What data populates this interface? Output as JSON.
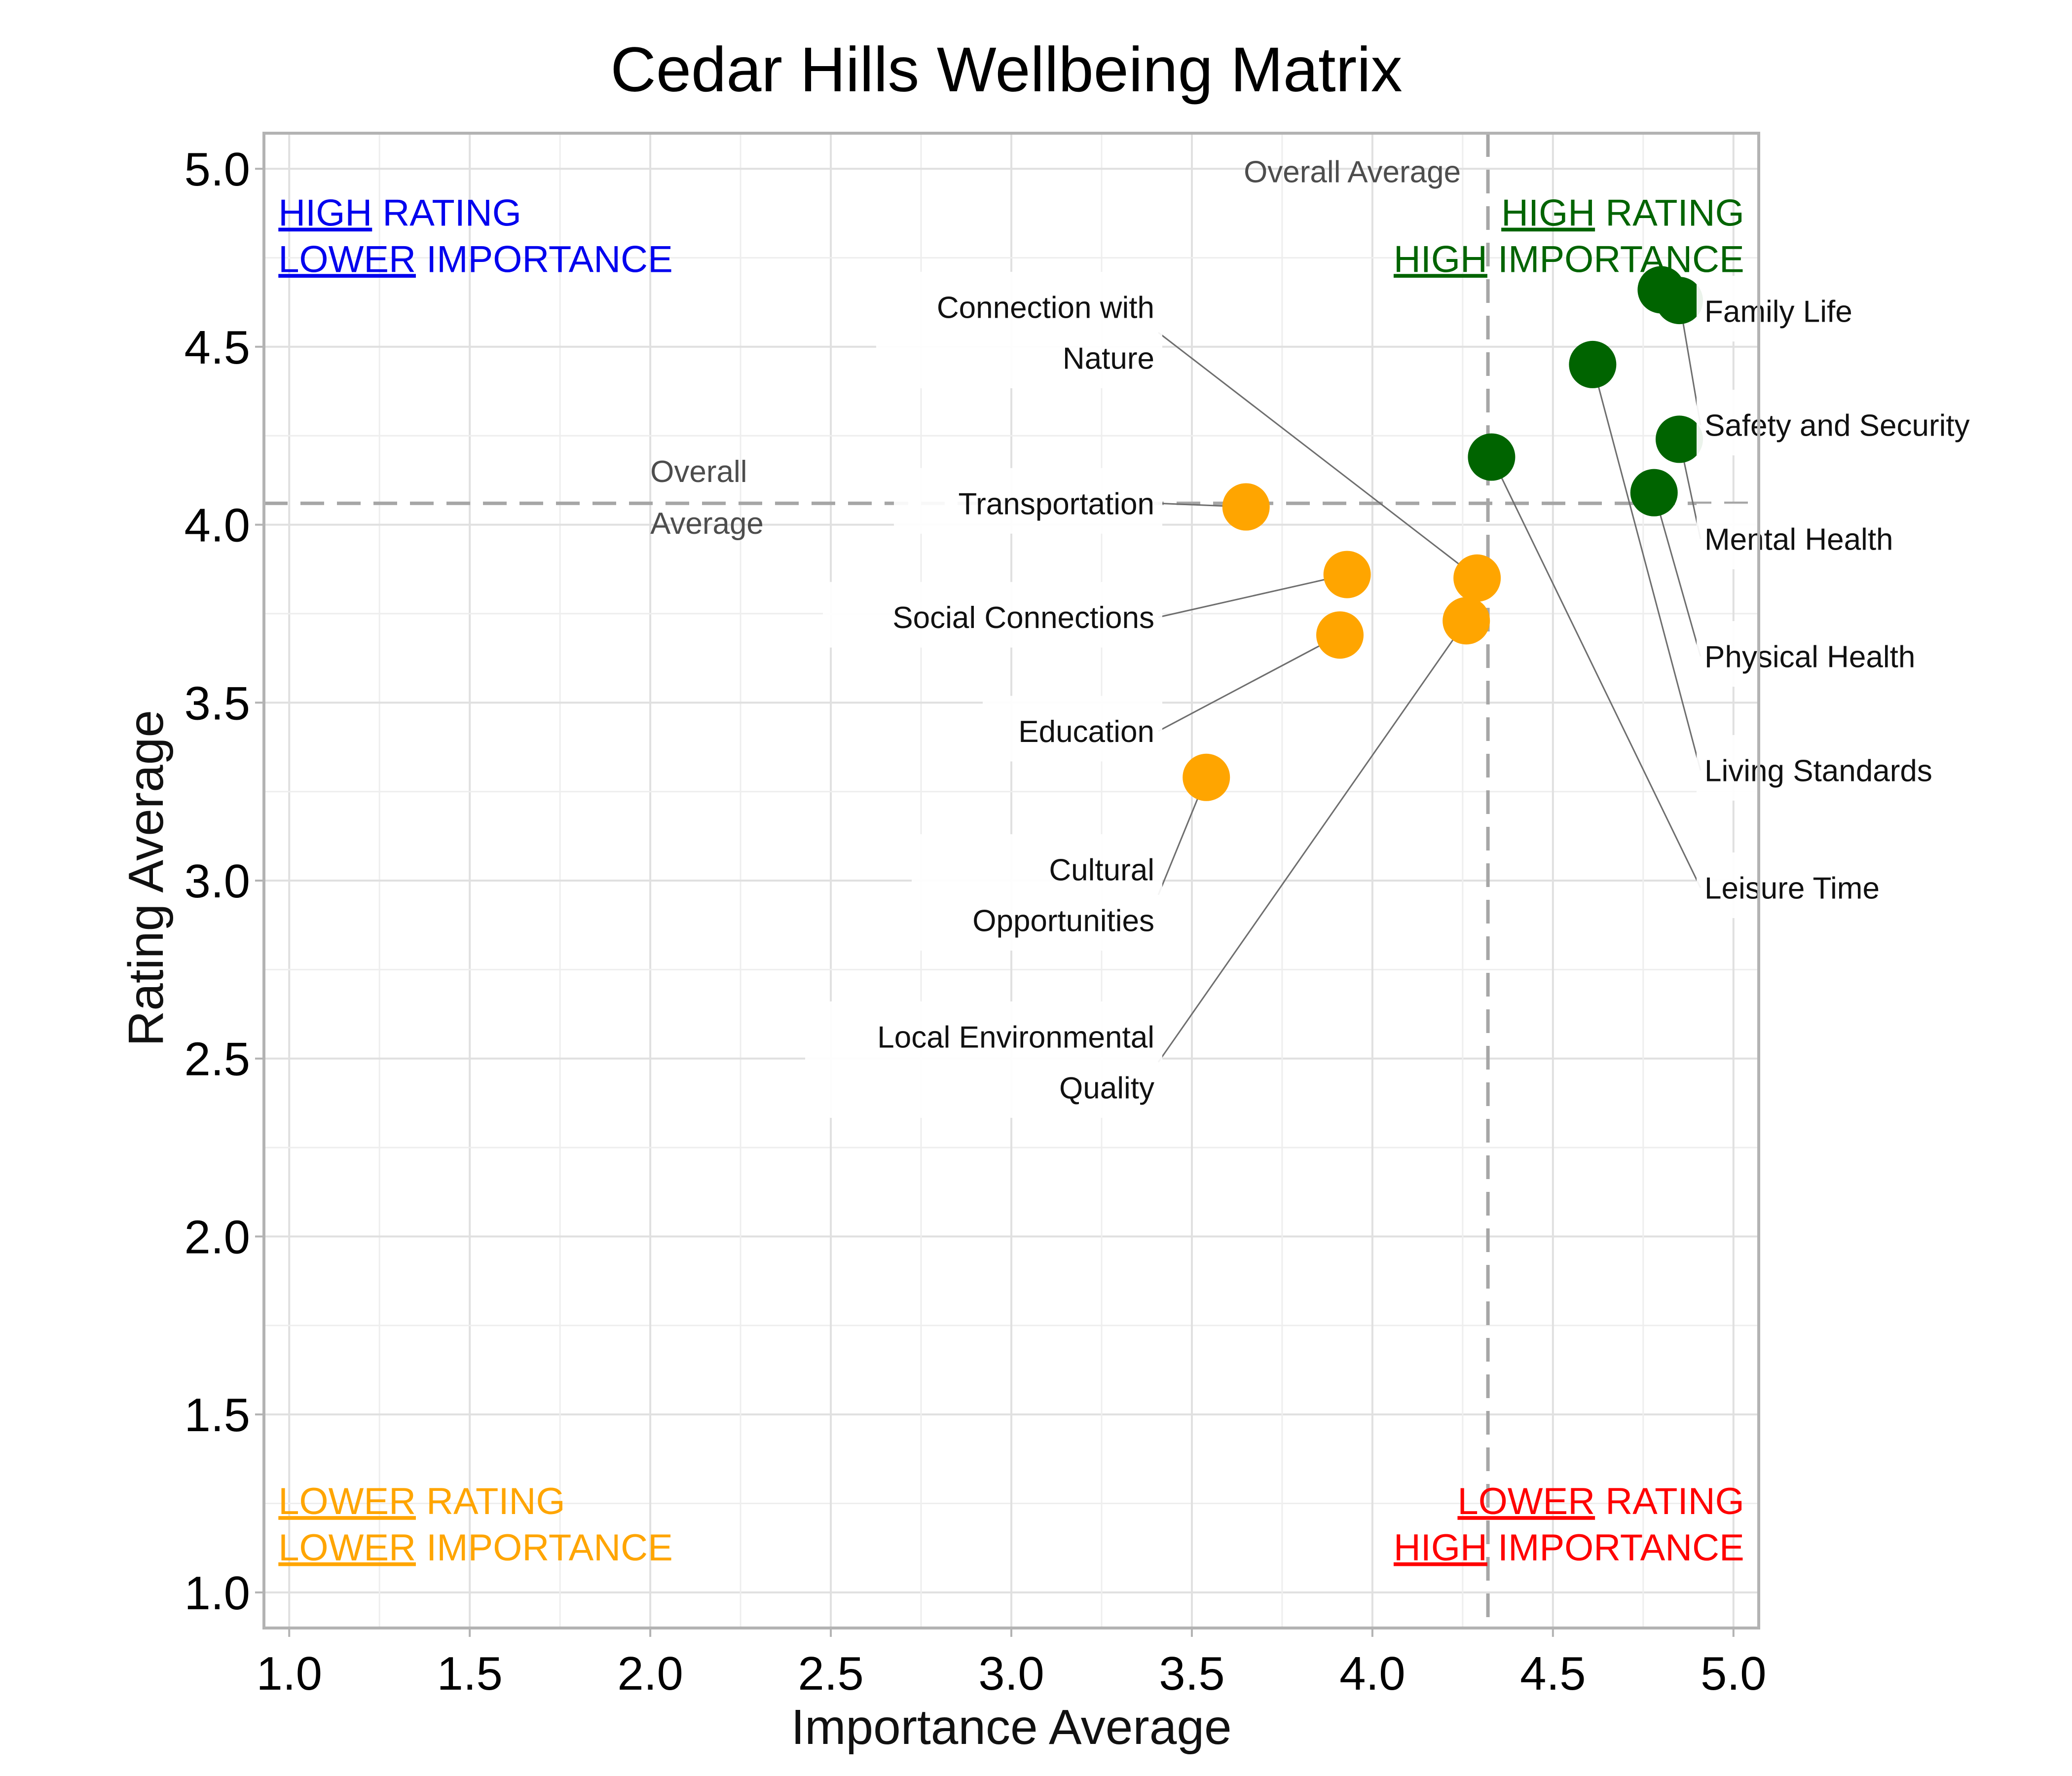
{
  "chart_data": {
    "type": "scatter",
    "title": "Cedar Hills Wellbeing Matrix",
    "xlabel": "Importance Average",
    "ylabel": "Rating Average",
    "xlim": [
      0.93,
      5.07
    ],
    "ylim": [
      0.9,
      5.1
    ],
    "xticks": [
      "1.0",
      "1.5",
      "2.0",
      "2.5",
      "3.0",
      "3.5",
      "4.0",
      "4.5",
      "5.0"
    ],
    "yticks": [
      "1.0",
      "1.5",
      "2.0",
      "2.5",
      "3.0",
      "3.5",
      "4.0",
      "4.5",
      "5.0"
    ],
    "grid": true,
    "colors": {
      "high": "#006400",
      "low": "#FFA500"
    },
    "averages": {
      "x": 4.32,
      "y": 4.06,
      "x_note": "Overall Average",
      "y_note": [
        "Overall",
        "Average"
      ]
    },
    "quadrants": {
      "top_left": {
        "line1_u": "HIGH",
        "line1_r": " RATING",
        "line2_u": "LOWER",
        "line2_r": " IMPORTANCE",
        "color": "#0000EE"
      },
      "top_right": {
        "line1_u": "HIGH",
        "line1_r": " RATING",
        "line2_u": "HIGH",
        "line2_r": " IMPORTANCE",
        "color": "#006400"
      },
      "bottom_left": {
        "line1_u": "LOWER",
        "line1_r": " RATING",
        "line2_u": "LOWER",
        "line2_r": " IMPORTANCE",
        "color": "#FFA500"
      },
      "bottom_right": {
        "line1_u": "LOWER",
        "line1_r": " RATING",
        "line2_u": "HIGH",
        "line2_r": " IMPORTANCE",
        "color": "#FF0000"
      }
    },
    "points": [
      {
        "label": [
          "Family Life"
        ],
        "x": 4.8,
        "y": 4.66,
        "group": "high",
        "side": "right"
      },
      {
        "label": [
          "Safety and Security"
        ],
        "x": 4.85,
        "y": 4.63,
        "group": "high",
        "side": "right"
      },
      {
        "label": [
          "Mental Health"
        ],
        "x": 4.85,
        "y": 4.24,
        "group": "high",
        "side": "right"
      },
      {
        "label": [
          "Physical Health"
        ],
        "x": 4.78,
        "y": 4.09,
        "group": "high",
        "side": "right"
      },
      {
        "label": [
          "Living Standards"
        ],
        "x": 4.61,
        "y": 4.45,
        "group": "high",
        "side": "right"
      },
      {
        "label": [
          "Leisure Time"
        ],
        "x": 4.33,
        "y": 4.19,
        "group": "high",
        "side": "right"
      },
      {
        "label": [
          "Connection with",
          "Nature"
        ],
        "x": 4.29,
        "y": 3.85,
        "group": "low",
        "side": "left"
      },
      {
        "label": [
          "Transportation"
        ],
        "x": 3.65,
        "y": 4.05,
        "group": "low",
        "side": "left"
      },
      {
        "label": [
          "Social Connections"
        ],
        "x": 3.93,
        "y": 3.86,
        "group": "low",
        "side": "left"
      },
      {
        "label": [
          "Education"
        ],
        "x": 3.91,
        "y": 3.69,
        "group": "low",
        "side": "left"
      },
      {
        "label": [
          "Cultural",
          "Opportunities"
        ],
        "x": 3.54,
        "y": 3.29,
        "group": "low",
        "side": "left"
      },
      {
        "label": [
          "Local Environmental",
          "Quality"
        ],
        "x": 4.26,
        "y": 3.73,
        "group": "low",
        "side": "left"
      }
    ],
    "label_slots": {
      "right": [
        "Family Life",
        "Safety and Security",
        "Mental Health",
        "Physical Health",
        "Living Standards",
        "Leisure Time"
      ],
      "left": [
        "Connection with|Nature",
        "Transportation",
        "Social Connections",
        "Education",
        "Cultural|Opportunities",
        "Local Environmental|Quality"
      ]
    }
  }
}
